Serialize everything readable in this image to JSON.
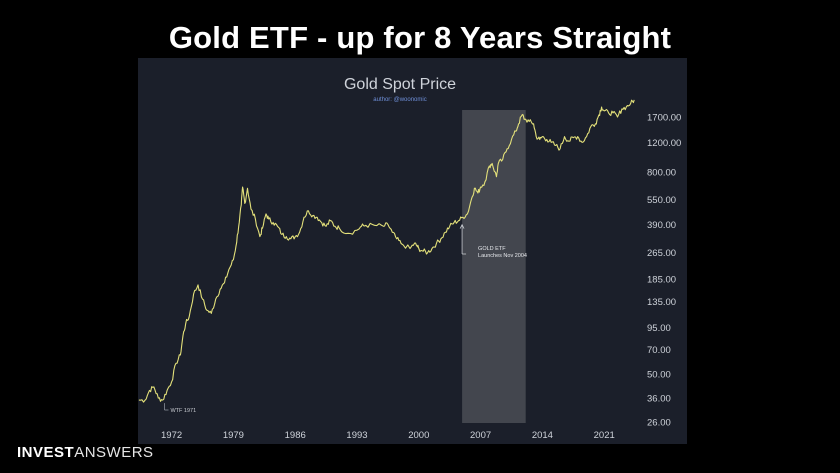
{
  "slide": {
    "title": "Gold ETF - up for 8 Years Straight"
  },
  "brand": {
    "part1": "INVEST",
    "part2": "ANSWERS"
  },
  "colors": {
    "background": "#000000",
    "panel": "#1b1f2a",
    "line": "#e3e07a",
    "highlight": "#4a4d55",
    "text": "#cfd3da"
  },
  "chart_data": {
    "type": "line",
    "title": "Gold Spot Price",
    "subtitle": "author: @woonomic",
    "xlabel": "",
    "ylabel": "",
    "y_scale": "log",
    "ylim": [
      22,
      2300
    ],
    "xlim": [
      1968.2,
      2024.6
    ],
    "x_ticks": [
      1972,
      1979,
      1986,
      1993,
      2000,
      2007,
      2014,
      2021
    ],
    "x_tick_labels": [
      "1972",
      "1979",
      "1986",
      "1993",
      "2000",
      "2007",
      "2014",
      "2021"
    ],
    "y_ticks": [
      26,
      36,
      50,
      70,
      95,
      135,
      185,
      265,
      390,
      550,
      800,
      1200,
      1700
    ],
    "y_tick_labels": [
      "26.00",
      "36.00",
      "50.00",
      "70.00",
      "95.00",
      "135.00",
      "185.00",
      "265.00",
      "390.00",
      "550.00",
      "800.00",
      "1200.00",
      "1700.00"
    ],
    "grid": false,
    "highlight_range": [
      2004.9,
      2012.1
    ],
    "series": [
      {
        "name": "Gold Spot Price",
        "x": [
          1968.3,
          1969,
          1969.5,
          1970,
          1970.5,
          1971,
          1971.5,
          1972,
          1972.5,
          1973,
          1973.3,
          1973.6,
          1974,
          1974.5,
          1975,
          1975.5,
          1976,
          1976.5,
          1977,
          1977.5,
          1978,
          1978.5,
          1979,
          1979.3,
          1979.6,
          1979.9,
          1980.05,
          1980.3,
          1980.6,
          1981,
          1981.5,
          1982,
          1982.3,
          1982.7,
          1983,
          1983.5,
          1984,
          1984.5,
          1985,
          1985.5,
          1986,
          1986.5,
          1987,
          1987.5,
          1988,
          1988.5,
          1989,
          1989.5,
          1990,
          1990.5,
          1991,
          1992,
          1993,
          1993.5,
          1994,
          1995,
          1996,
          1996.5,
          1997,
          1997.5,
          1998,
          1999,
          1999.5,
          1999.8,
          2000,
          2000.5,
          2001,
          2001.5,
          2002,
          2002.5,
          2003,
          2003.5,
          2004,
          2004.5,
          2005,
          2005.5,
          2006,
          2006.3,
          2006.7,
          2007,
          2007.5,
          2008,
          2008.3,
          2008.8,
          2009,
          2009.5,
          2010,
          2010.5,
          2011,
          2011.3,
          2011.7,
          2012,
          2012.5,
          2013,
          2013.3,
          2013.7,
          2014,
          2014.5,
          2015,
          2015.5,
          2016,
          2016.5,
          2017,
          2017.5,
          2018,
          2018.5,
          2019,
          2019.5,
          2020,
          2020.4,
          2020.7,
          2021,
          2021.5,
          2022,
          2022.5,
          2023,
          2023.5,
          2024,
          2024.4
        ],
        "values": [
          35,
          35,
          40,
          42,
          36,
          35,
          40,
          45,
          58,
          65,
          85,
          100,
          110,
          150,
          170,
          140,
          120,
          115,
          140,
          160,
          175,
          210,
          240,
          290,
          380,
          510,
          650,
          520,
          640,
          480,
          420,
          330,
          370,
          450,
          420,
          400,
          380,
          340,
          330,
          320,
          330,
          350,
          430,
          470,
          440,
          430,
          400,
          380,
          410,
          380,
          370,
          345,
          360,
          380,
          385,
          385,
          380,
          390,
          350,
          320,
          300,
          280,
          300,
          290,
          280,
          270,
          265,
          280,
          300,
          320,
          350,
          380,
          400,
          410,
          430,
          450,
          560,
          640,
          600,
          650,
          700,
          870,
          900,
          750,
          900,
          950,
          1100,
          1250,
          1400,
          1550,
          1750,
          1650,
          1600,
          1550,
          1300,
          1250,
          1300,
          1250,
          1200,
          1150,
          1100,
          1300,
          1220,
          1280,
          1300,
          1200,
          1300,
          1500,
          1550,
          1750,
          1950,
          1850,
          1800,
          1800,
          1700,
          1900,
          1950,
          2050,
          2150
        ]
      }
    ],
    "annotations": [
      {
        "label": "WTF 1971",
        "x": 1971.2,
        "y": 35
      },
      {
        "label_lines": [
          "GOLD ETF",
          "Launches Nov 2004"
        ],
        "x": 2004.9,
        "y": 405
      }
    ]
  }
}
